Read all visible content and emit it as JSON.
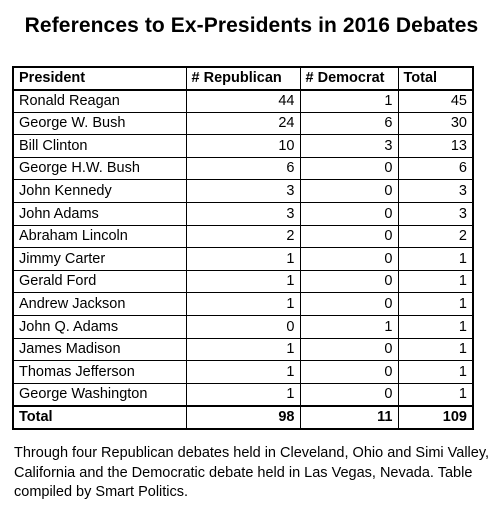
{
  "title": "References to Ex-Presidents in 2016 Debates",
  "table": {
    "headers": {
      "president": "President",
      "republican": "# Republican",
      "democrat": "# Democrat",
      "total": "Total"
    },
    "rows": [
      {
        "president": "Ronald Reagan",
        "republican": "44",
        "democrat": "1",
        "total": "45"
      },
      {
        "president": "George W. Bush",
        "republican": "24",
        "democrat": "6",
        "total": "30"
      },
      {
        "president": "Bill Clinton",
        "republican": "10",
        "democrat": "3",
        "total": "13"
      },
      {
        "president": "George H.W. Bush",
        "republican": "6",
        "democrat": "0",
        "total": "6"
      },
      {
        "president": "John Kennedy",
        "republican": "3",
        "democrat": "0",
        "total": "3"
      },
      {
        "president": "John Adams",
        "republican": "3",
        "democrat": "0",
        "total": "3"
      },
      {
        "president": "Abraham Lincoln",
        "republican": "2",
        "democrat": "0",
        "total": "2"
      },
      {
        "president": "Jimmy Carter",
        "republican": "1",
        "democrat": "0",
        "total": "1"
      },
      {
        "president": "Gerald Ford",
        "republican": "1",
        "democrat": "0",
        "total": "1"
      },
      {
        "president": "Andrew Jackson",
        "republican": "1",
        "democrat": "0",
        "total": "1"
      },
      {
        "president": "John Q. Adams",
        "republican": "0",
        "democrat": "1",
        "total": "1"
      },
      {
        "president": "James Madison",
        "republican": "1",
        "democrat": "0",
        "total": "1"
      },
      {
        "president": "Thomas Jefferson",
        "republican": "1",
        "democrat": "0",
        "total": "1"
      },
      {
        "president": "George Washington",
        "republican": "1",
        "democrat": "0",
        "total": "1"
      }
    ],
    "totals": {
      "label": "Total",
      "republican": "98",
      "democrat": "11",
      "total": "109"
    }
  },
  "caption": "Through four Republican debates held in Cleveland, Ohio and Simi Valley, California and the Democratic debate held in Las Vegas, Nevada. Table compiled by Smart Politics."
}
